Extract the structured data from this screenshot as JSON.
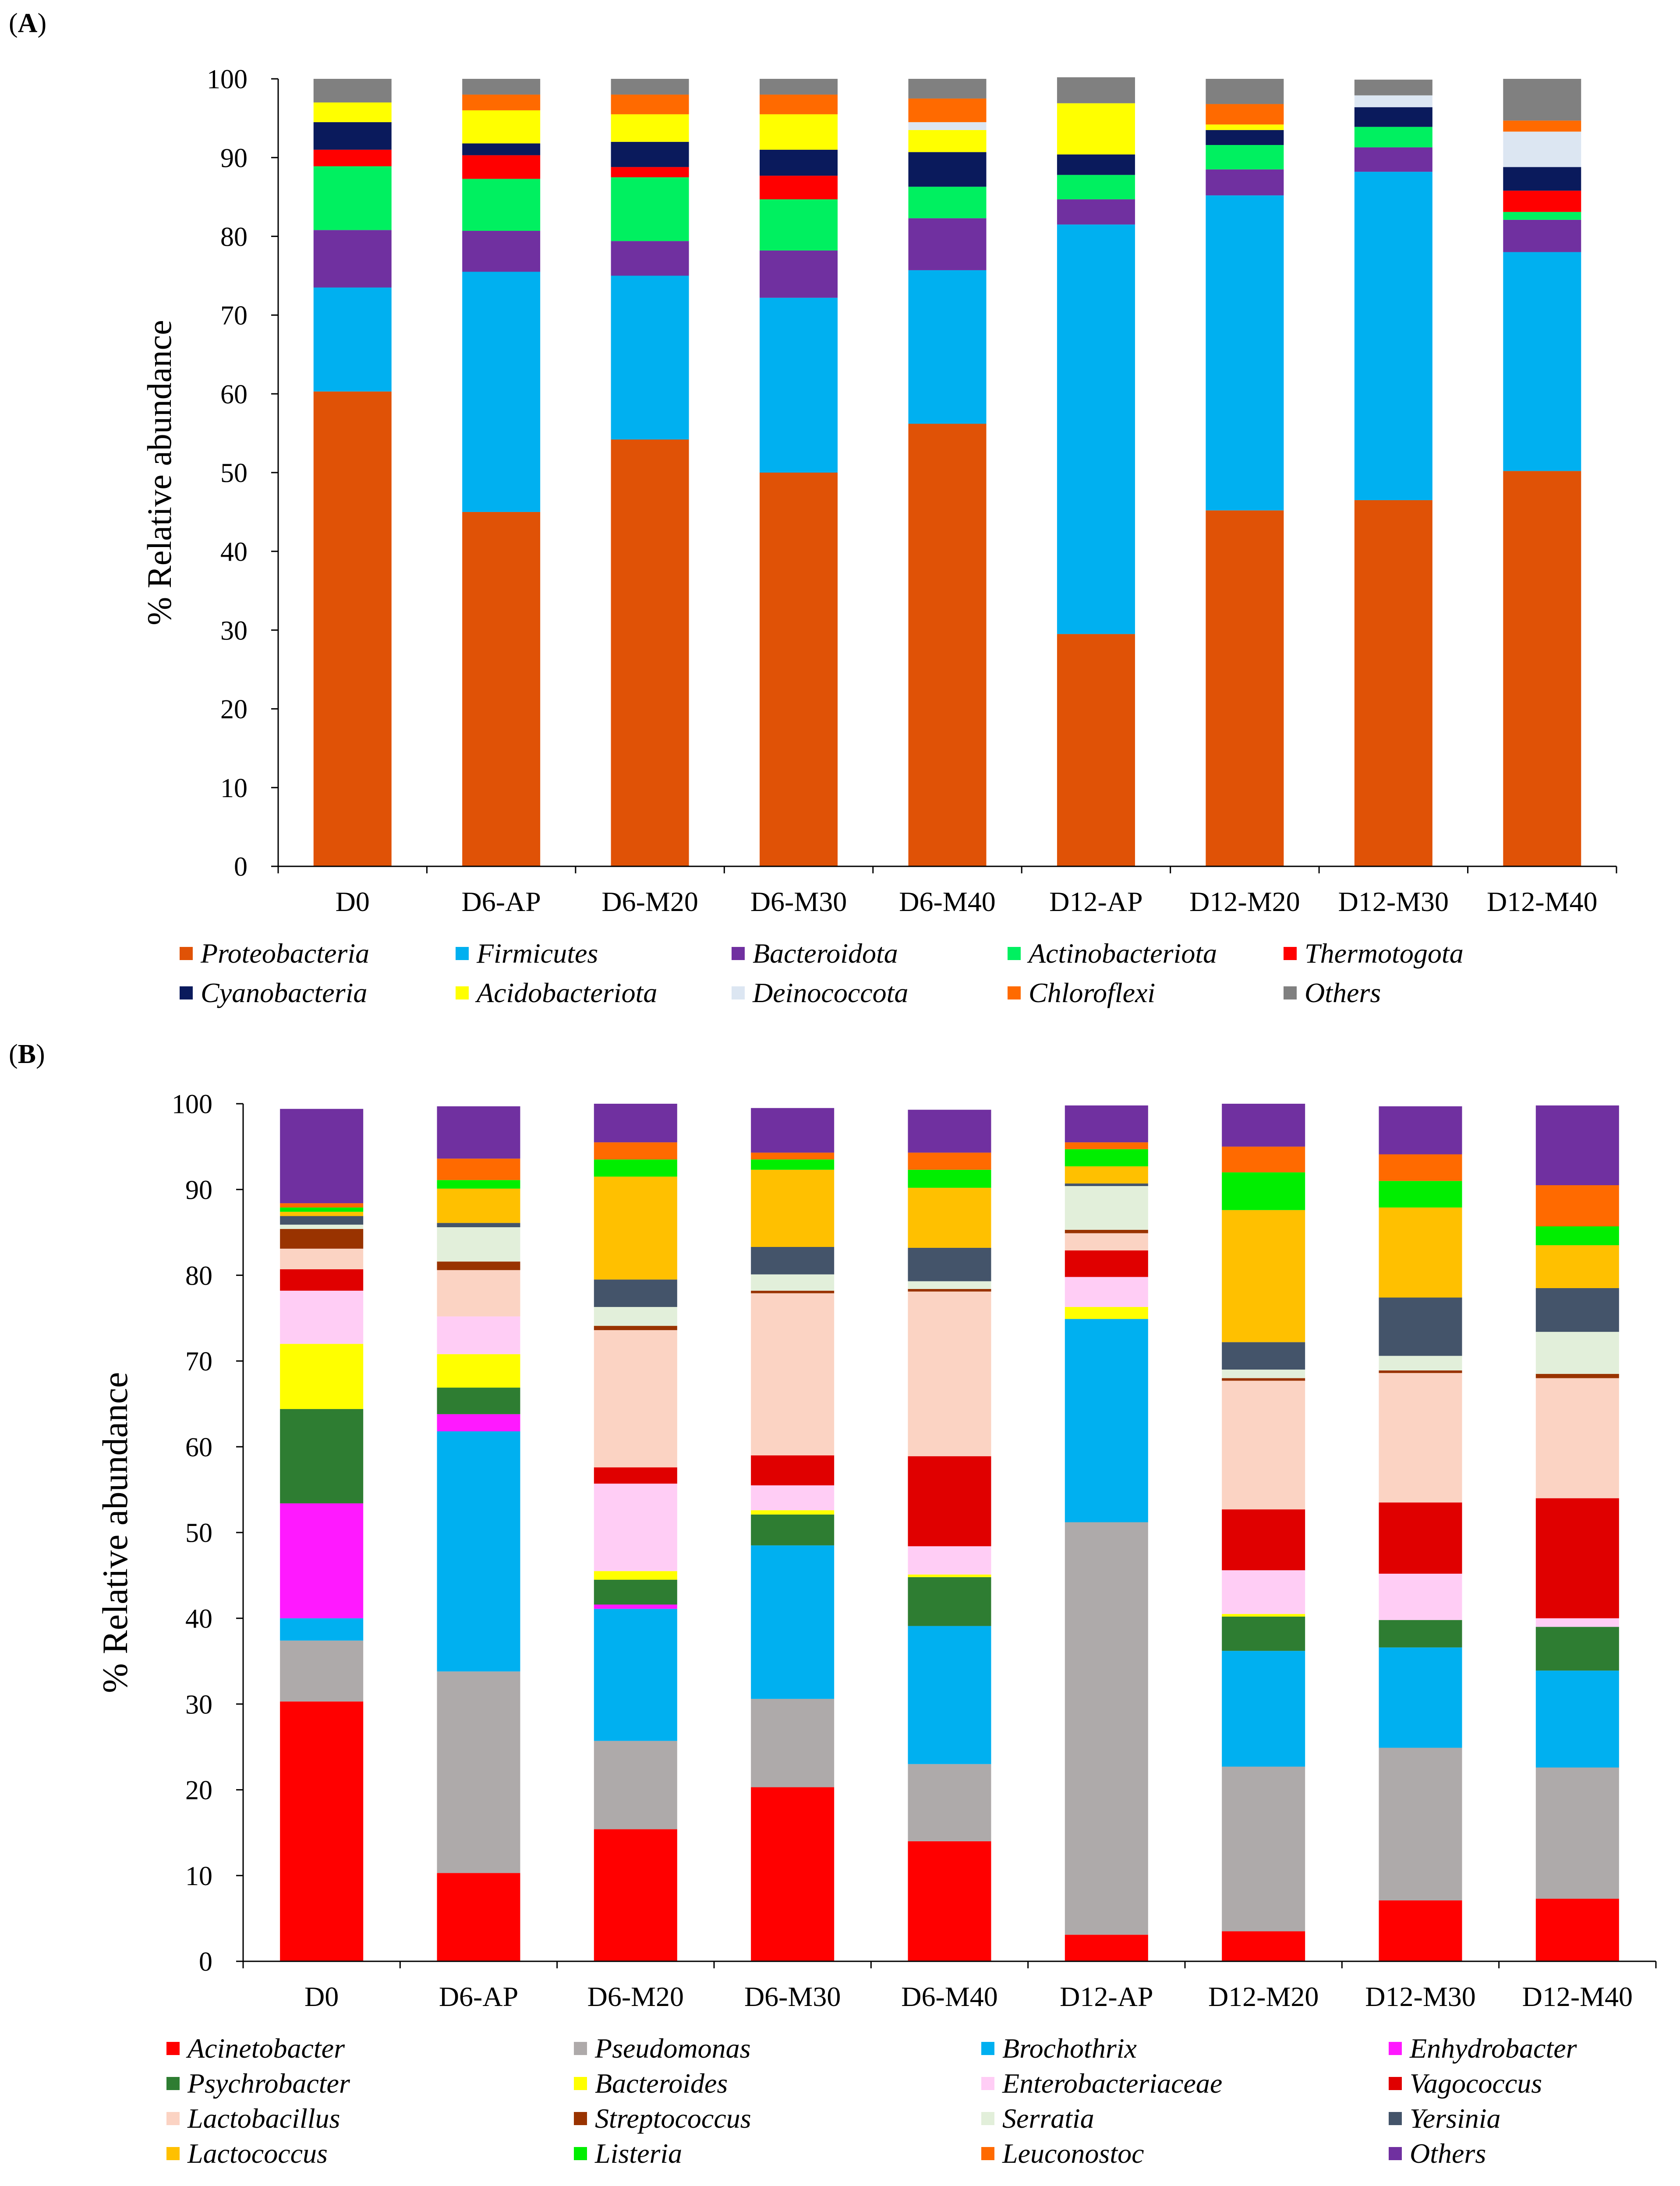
{
  "chart_data": [
    {
      "panel_label": "A",
      "type": "bar",
      "stacked": true,
      "title": "",
      "xlabel": "",
      "ylabel": "% Relative abundance",
      "ylim": [
        0,
        100
      ],
      "yticks": [
        "0",
        "10",
        "20",
        "30",
        "40",
        "50",
        "60",
        "70",
        "80",
        "90",
        "100"
      ],
      "categories": [
        "D0",
        "D6-AP",
        "D6-M20",
        "D6-M30",
        "D6-M40",
        "D12-AP",
        "D12-M20",
        "D12-M30",
        "D12-M40"
      ],
      "series": [
        {
          "name": "Proteobacteria",
          "color": "#e05206",
          "values": [
            60.3,
            45,
            54.2,
            50,
            56.2,
            29.5,
            45.2,
            46.5,
            50.2
          ]
        },
        {
          "name": "Firmicutes",
          "color": "#00b0f0",
          "values": [
            13.2,
            30.5,
            20.8,
            22.2,
            19.5,
            52,
            40,
            41.7,
            27.8
          ]
        },
        {
          "name": "Bacteroidota",
          "color": "#7030a0",
          "values": [
            7.3,
            5.2,
            4.4,
            6,
            6.6,
            3.2,
            3.3,
            3.1,
            4.1
          ]
        },
        {
          "name": "Actinobacteriota",
          "color": "#00f060",
          "values": [
            8.1,
            6.6,
            8.1,
            6.5,
            4,
            3.1,
            3.1,
            2.6,
            1
          ]
        },
        {
          "name": "Thermotogota",
          "color": "#ff0000",
          "values": [
            2.1,
            3,
            1.3,
            3,
            0,
            0,
            0,
            0,
            2.7
          ]
        },
        {
          "name": "Cyanobacteria",
          "color": "#0a1a5c",
          "values": [
            3.5,
            1.5,
            3.2,
            3.3,
            4.4,
            2.6,
            1.9,
            2.5,
            3
          ]
        },
        {
          "name": "Acidobacteriota",
          "color": "#ffff00",
          "values": [
            2.5,
            4.2,
            3.5,
            4.5,
            2.8,
            6.5,
            0.7,
            0,
            0
          ]
        },
        {
          "name": "Deinococcota",
          "color": "#dce6f2",
          "values": [
            0,
            0,
            0,
            0,
            1,
            0,
            0,
            1.5,
            4.5
          ]
        },
        {
          "name": "Chloroflexi",
          "color": "#ff6a00",
          "values": [
            0,
            2,
            2.5,
            2.5,
            3,
            0,
            2.6,
            0,
            1.4
          ]
        },
        {
          "name": "Others",
          "color": "#808080",
          "values": [
            3,
            2,
            2,
            2,
            2.5,
            3.3,
            3.2,
            2,
            5.3
          ]
        }
      ]
    },
    {
      "panel_label": "B",
      "type": "bar",
      "stacked": true,
      "title": "",
      "xlabel": "",
      "ylabel": "% Relative abundance",
      "ylim": [
        0,
        100
      ],
      "yticks": [
        "0",
        "10",
        "20",
        "30",
        "40",
        "50",
        "60",
        "70",
        "80",
        "90",
        "100"
      ],
      "categories": [
        "D0",
        "D6-AP",
        "D6-M20",
        "D6-M30",
        "D6-M40",
        "D12-AP",
        "D12-M20",
        "D12-M30",
        "D12-M40"
      ],
      "series": [
        {
          "name": "Acinetobacter",
          "color": "#ff0000",
          "values": [
            30.3,
            10.3,
            15.4,
            20.3,
            14,
            3.1,
            3.5,
            7.1,
            7.3
          ]
        },
        {
          "name": "Pseudomonas",
          "color": "#aeaaaa",
          "values": [
            7.1,
            23.5,
            10.3,
            10.3,
            9,
            48.1,
            19.2,
            17.8,
            15.3
          ]
        },
        {
          "name": "Brochothrix",
          "color": "#00b0f0",
          "values": [
            2.6,
            28,
            15.4,
            17.9,
            16.1,
            23.7,
            13.5,
            11.7,
            11.3
          ]
        },
        {
          "name": "Enhydrobacter",
          "color": "#ff19ff",
          "values": [
            13.4,
            2,
            0.5,
            0,
            0,
            0,
            0,
            0,
            0
          ]
        },
        {
          "name": "Psychrobacter",
          "color": "#2e7d32",
          "values": [
            11,
            3.1,
            2.9,
            3.6,
            5.7,
            0,
            4,
            3.2,
            5.1
          ]
        },
        {
          "name": "Bacteroides",
          "color": "#ffff00",
          "values": [
            7.6,
            3.9,
            1,
            0.5,
            0.3,
            1.4,
            0.3,
            0,
            0
          ]
        },
        {
          "name": "Enterobacteriaceae",
          "color": "#ffcdf5",
          "values": [
            6.2,
            4.4,
            10.2,
            2.9,
            3.3,
            3.5,
            5.1,
            5.4,
            1
          ]
        },
        {
          "name": "Vagococcus",
          "color": "#e00000",
          "values": [
            2.5,
            0,
            1.9,
            3.5,
            10.5,
            3.1,
            7.1,
            8.3,
            14
          ]
        },
        {
          "name": "Lactobacillus",
          "color": "#fbd3c3",
          "values": [
            2.4,
            5.4,
            16,
            18.9,
            19.2,
            2,
            15,
            15.1,
            14
          ]
        },
        {
          "name": "Streptococcus",
          "color": "#993300",
          "values": [
            2.3,
            1,
            0.5,
            0.3,
            0.3,
            0.4,
            0.3,
            0.3,
            0.5
          ]
        },
        {
          "name": "Serratia",
          "color": "#e2efda",
          "values": [
            0.5,
            4,
            2.2,
            1.9,
            0.9,
            5.1,
            1,
            1.7,
            4.9
          ]
        },
        {
          "name": "Yersinia",
          "color": "#44546a",
          "values": [
            1,
            0.5,
            3.2,
            3.2,
            3.9,
            0.3,
            3.2,
            6.8,
            5.1
          ]
        },
        {
          "name": "Lactococcus",
          "color": "#ffc000",
          "values": [
            0.5,
            4,
            12,
            9,
            7,
            2,
            15.4,
            10.5,
            5
          ]
        },
        {
          "name": "Listeria",
          "color": "#00ee00",
          "values": [
            0.5,
            1,
            2,
            1.2,
            2.1,
            2,
            4.4,
            3.1,
            2.2
          ]
        },
        {
          "name": "Leuconostoc",
          "color": "#ff6a00",
          "values": [
            0.5,
            2.5,
            2,
            0.8,
            2,
            0.8,
            3,
            3.1,
            4.8
          ]
        },
        {
          "name": "Others",
          "color": "#7030a0",
          "values": [
            11,
            6.1,
            4.5,
            5.2,
            5,
            4.3,
            5,
            5.6,
            9.3
          ]
        }
      ]
    }
  ]
}
